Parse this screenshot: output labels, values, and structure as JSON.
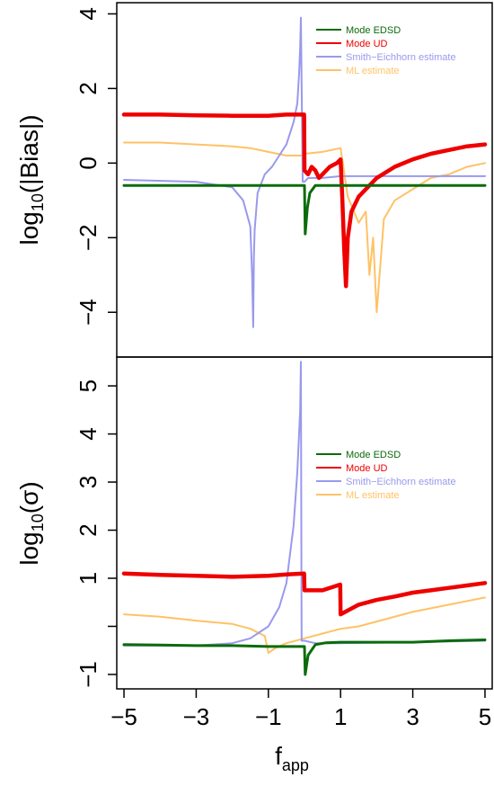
{
  "chart_data": [
    {
      "type": "line",
      "ylabel_base": "log",
      "ylabel_sub": "10",
      "ylabel_arg": "(|Bias|)",
      "ylim": [
        -5.2,
        4.3
      ],
      "yticks": [
        -4,
        -2,
        0,
        2,
        4
      ],
      "ytick_labels": [
        "−4",
        "−2",
        "0",
        "2",
        "4"
      ],
      "legend_position": "top-right",
      "legend": [
        "Mode EDSD",
        "Mode UD",
        "Smith−Eichhorn estimate",
        "ML estimate"
      ],
      "series": [
        {
          "name": "Mode EDSD",
          "color": "#0b6b0b",
          "x": [
            -5,
            -4,
            -3,
            -2,
            -1,
            -0.5,
            0,
            0.02,
            0.08,
            0.15,
            0.3,
            0.5,
            0.8,
            1,
            2,
            3,
            4,
            5
          ],
          "y": [
            -0.6,
            -0.6,
            -0.6,
            -0.6,
            -0.6,
            -0.6,
            -0.6,
            -1.9,
            -1.2,
            -0.8,
            -0.6,
            -0.6,
            -0.6,
            -0.6,
            -0.6,
            -0.6,
            -0.6,
            -0.6
          ]
        },
        {
          "name": "Mode UD",
          "color": "#ee0000",
          "x": [
            -5,
            -4,
            -3,
            -2,
            -1,
            -0.5,
            -0.01,
            0,
            0.1,
            0.2,
            0.3,
            0.4,
            0.5,
            0.7,
            0.9,
            1,
            1.05,
            1.1,
            1.15,
            1.2,
            1.3,
            1.5,
            2,
            2.5,
            3,
            3.5,
            4,
            4.5,
            5
          ],
          "y": [
            1.3,
            1.3,
            1.28,
            1.27,
            1.27,
            1.3,
            1.3,
            -0.2,
            -0.3,
            -0.1,
            -0.2,
            -0.4,
            -0.3,
            -0.1,
            0.0,
            0.1,
            -1.0,
            -2.3,
            -3.3,
            -2.0,
            -1.3,
            -0.9,
            -0.4,
            -0.1,
            0.1,
            0.25,
            0.35,
            0.45,
            0.5
          ]
        },
        {
          "name": "Smith−Eichhorn estimate",
          "color": "#9999ee",
          "x": [
            -5,
            -3,
            -2,
            -1.7,
            -1.5,
            -1.45,
            -1.42,
            -1.4,
            -1.38,
            -1.3,
            -1.1,
            -0.9,
            -0.7,
            -0.5,
            -0.3,
            -0.2,
            -0.15,
            -0.12,
            -0.1,
            -0.05,
            0,
            0.1,
            0.5,
            1,
            2,
            3,
            4,
            5
          ],
          "y": [
            -0.45,
            -0.5,
            -0.65,
            -1.0,
            -1.7,
            -3.0,
            -4.4,
            -2.5,
            -1.8,
            -0.8,
            -0.3,
            -0.1,
            0.2,
            0.5,
            1.1,
            1.6,
            2.4,
            3.1,
            3.9,
            -0.5,
            -0.5,
            -0.4,
            -0.4,
            -0.35,
            -0.35,
            -0.35,
            -0.35,
            -0.35
          ]
        },
        {
          "name": "ML estimate",
          "color": "#ffc266",
          "x": [
            -5,
            -4,
            -3,
            -2,
            -1.5,
            -1,
            -0.5,
            -0.1,
            0,
            0.5,
            1,
            1.2,
            1.5,
            1.7,
            1.8,
            1.9,
            2.0,
            2.2,
            2.5,
            3,
            3.5,
            4,
            4.5,
            5
          ],
          "y": [
            0.55,
            0.55,
            0.5,
            0.45,
            0.4,
            0.3,
            0.2,
            0.2,
            0.25,
            0.3,
            0.4,
            -0.9,
            -1.6,
            -1.3,
            -3.0,
            -2.0,
            -4.0,
            -1.5,
            -1.0,
            -0.7,
            -0.4,
            -0.3,
            -0.1,
            0.0
          ]
        }
      ]
    },
    {
      "type": "line",
      "ylabel_base": "log",
      "ylabel_sub": "10",
      "ylabel_arg": "(σ)",
      "xlabel_base": "f",
      "xlabel_sub": "app",
      "ylim": [
        -1.3,
        5.6
      ],
      "xlim": [
        -5.2,
        5.2
      ],
      "yticks": [
        -1,
        1,
        2,
        3,
        4,
        5
      ],
      "ytick_labels": [
        "−1",
        "1",
        "2",
        "3",
        "4",
        "5"
      ],
      "yticks_unlabeled": [
        0
      ],
      "xticks": [
        -5,
        -3,
        -1,
        1,
        3,
        5
      ],
      "xtick_labels": [
        "−5",
        "−3",
        "−1",
        "1",
        "3",
        "5"
      ],
      "legend_position": "top-right",
      "legend": [
        "Mode EDSD",
        "Mode UD",
        "Smith−Eichhorn estimate",
        "ML estimate"
      ],
      "series": [
        {
          "name": "Mode EDSD",
          "color": "#0b6b0b",
          "x": [
            -5,
            -4,
            -3,
            -2,
            -1,
            -0.5,
            0,
            0.02,
            0.1,
            0.3,
            0.6,
            1,
            2,
            3,
            4,
            5
          ],
          "y": [
            -0.38,
            -0.39,
            -0.4,
            -0.4,
            -0.42,
            -0.42,
            -0.42,
            -1.0,
            -0.6,
            -0.38,
            -0.34,
            -0.33,
            -0.33,
            -0.33,
            -0.3,
            -0.28
          ]
        },
        {
          "name": "Mode UD",
          "color": "#ee0000",
          "x": [
            -5,
            -4,
            -3,
            -2,
            -1,
            -0.5,
            -0.01,
            0,
            0.5,
            0.99,
            1,
            1.5,
            2,
            2.5,
            3,
            3.5,
            4,
            4.5,
            5
          ],
          "y": [
            1.1,
            1.07,
            1.05,
            1.03,
            1.05,
            1.08,
            1.1,
            0.75,
            0.75,
            0.87,
            0.25,
            0.45,
            0.55,
            0.62,
            0.7,
            0.75,
            0.8,
            0.85,
            0.9
          ]
        },
        {
          "name": "Smith−Eichhorn estimate",
          "color": "#9999ee",
          "x": [
            -5,
            -3,
            -2,
            -1.5,
            -1,
            -0.7,
            -0.5,
            -0.3,
            -0.2,
            -0.12,
            -0.1,
            -0.08,
            0,
            0.3,
            1,
            3,
            5
          ],
          "y": [
            -0.4,
            -0.4,
            -0.35,
            -0.25,
            0.0,
            0.4,
            0.9,
            2.1,
            3.2,
            4.5,
            5.5,
            -0.3,
            -0.3,
            -0.35,
            -0.35,
            -0.33,
            -0.3
          ]
        },
        {
          "name": "ML estimate",
          "color": "#ffc266",
          "x": [
            -5,
            -4,
            -3,
            -2,
            -1.5,
            -1.1,
            -1,
            -0.8,
            -0.5,
            0,
            0.5,
            1,
            1.5,
            2,
            3,
            4,
            5
          ],
          "y": [
            0.25,
            0.2,
            0.12,
            0.05,
            -0.05,
            -0.2,
            -0.55,
            -0.45,
            -0.35,
            -0.25,
            -0.15,
            -0.05,
            0.0,
            0.1,
            0.3,
            0.45,
            0.6
          ]
        }
      ]
    }
  ]
}
